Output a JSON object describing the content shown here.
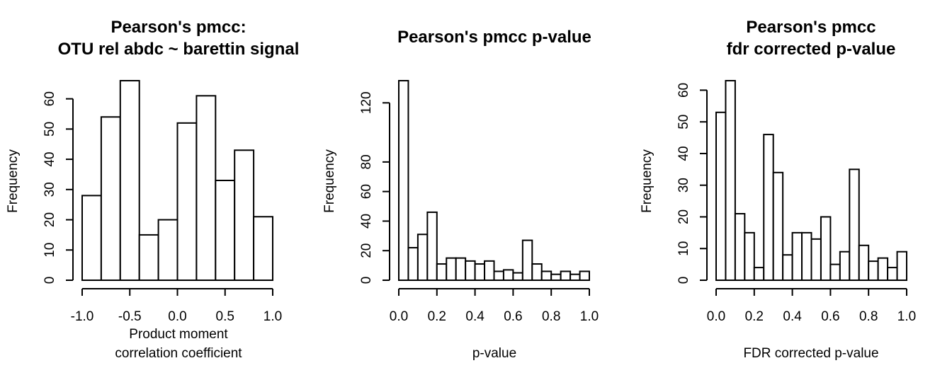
{
  "chart_data": [
    {
      "type": "bar",
      "title": [
        "Pearson's pmcc:",
        "OTU rel abdc ~ barettin signal"
      ],
      "xlabel": [
        "Product moment",
        "correlation coefficient"
      ],
      "ylabel": "Frequency",
      "bin_edges": [
        -1.0,
        -0.8,
        -0.6,
        -0.4,
        -0.2,
        0.0,
        0.2,
        0.4,
        0.6,
        0.8,
        1.0
      ],
      "values": [
        28,
        54,
        66,
        15,
        20,
        52,
        61,
        33,
        43,
        21
      ],
      "xlim": [
        -1.0,
        1.0
      ],
      "ylim": [
        0,
        66
      ],
      "xticks": [
        -1.0,
        -0.5,
        0.0,
        0.5,
        1.0
      ],
      "xtick_labels": [
        "-1.0",
        "-0.5",
        "0.0",
        "0.5",
        "1.0"
      ],
      "yticks": [
        0,
        10,
        20,
        30,
        40,
        50,
        60
      ],
      "ytick_labels": [
        "0",
        "10",
        "20",
        "30",
        "40",
        "50",
        "60"
      ]
    },
    {
      "type": "bar",
      "title": [
        "Pearson's pmcc p-value"
      ],
      "xlabel": [
        "p-value"
      ],
      "ylabel": "Frequency",
      "bin_edges": [
        0.0,
        0.05,
        0.1,
        0.15,
        0.2,
        0.25,
        0.3,
        0.35,
        0.4,
        0.45,
        0.5,
        0.55,
        0.6,
        0.65,
        0.7,
        0.75,
        0.8,
        0.85,
        0.9,
        0.95,
        1.0
      ],
      "values": [
        135,
        22,
        31,
        46,
        11,
        15,
        15,
        13,
        11,
        13,
        6,
        7,
        5,
        27,
        11,
        6,
        4,
        6,
        4,
        6
      ],
      "xlim": [
        0.0,
        1.0
      ],
      "ylim": [
        0,
        135
      ],
      "xticks": [
        0.0,
        0.2,
        0.4,
        0.6,
        0.8,
        1.0
      ],
      "xtick_labels": [
        "0.0",
        "0.2",
        "0.4",
        "0.6",
        "0.8",
        "1.0"
      ],
      "yticks": [
        0,
        20,
        40,
        60,
        80,
        120
      ],
      "ytick_labels": [
        "0",
        "20",
        "40",
        "60",
        "80",
        "120"
      ]
    },
    {
      "type": "bar",
      "title": [
        "Pearson's pmcc",
        "fdr corrected p-value"
      ],
      "xlabel": [
        "FDR corrected p-value"
      ],
      "ylabel": "Frequency",
      "bin_edges": [
        0.0,
        0.05,
        0.1,
        0.15,
        0.2,
        0.25,
        0.3,
        0.35,
        0.4,
        0.45,
        0.5,
        0.55,
        0.6,
        0.65,
        0.7,
        0.75,
        0.8,
        0.85,
        0.9,
        0.95,
        1.0
      ],
      "values": [
        53,
        63,
        21,
        15,
        4,
        46,
        34,
        8,
        15,
        15,
        13,
        20,
        5,
        9,
        35,
        11,
        6,
        7,
        4,
        9
      ],
      "xlim": [
        0.0,
        1.0
      ],
      "ylim": [
        0,
        63
      ],
      "xticks": [
        0.0,
        0.2,
        0.4,
        0.6,
        0.8,
        1.0
      ],
      "xtick_labels": [
        "0.0",
        "0.2",
        "0.4",
        "0.6",
        "0.8",
        "1.0"
      ],
      "yticks": [
        0,
        10,
        20,
        30,
        40,
        50,
        60
      ],
      "ytick_labels": [
        "0",
        "10",
        "20",
        "30",
        "40",
        "50",
        "60"
      ]
    }
  ]
}
